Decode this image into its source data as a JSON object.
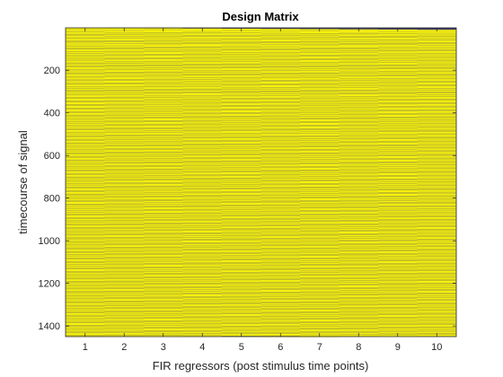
{
  "chart_data": {
    "type": "heatmap",
    "title": "Design Matrix",
    "xlabel": "FIR regressors (post stimulus time points)",
    "ylabel": "timecourse of signal",
    "x_categories": [
      1,
      2,
      3,
      4,
      5,
      6,
      7,
      8,
      9,
      10
    ],
    "x_ticks": [
      1,
      2,
      3,
      4,
      5,
      6,
      7,
      8,
      9,
      10
    ],
    "y_ticks": [
      200,
      400,
      600,
      800,
      1000,
      1200,
      1400
    ],
    "xlim": [
      0.5,
      10.5
    ],
    "ylim": [
      1,
      1450
    ],
    "y_direction": "reverse",
    "rows": 1450,
    "columns": 10,
    "values": "binary (0/1)",
    "colormap": {
      "0": "#3d3d6b",
      "1": "#f7f20d"
    },
    "column_onsets": [
      [
        1,
        6,
        11,
        16,
        22,
        27,
        33,
        39,
        44,
        50,
        55,
        61,
        67,
        73,
        78,
        83,
        89,
        95,
        101,
        106,
        112,
        117,
        123,
        129,
        134,
        140,
        146,
        151,
        157,
        162,
        168,
        174,
        180,
        186,
        191,
        197,
        202,
        208,
        214,
        220,
        225,
        231,
        236,
        242,
        248,
        253,
        259,
        265,
        270,
        276,
        281,
        287,
        293,
        299,
        305,
        310,
        316,
        321,
        327,
        333,
        338,
        344,
        350,
        355,
        361,
        367,
        372,
        378,
        384,
        389,
        395,
        401,
        406,
        412,
        418,
        424,
        429,
        435,
        441,
        446,
        452,
        458,
        463,
        469,
        475,
        481,
        486,
        492,
        497,
        503,
        509,
        515,
        520,
        526,
        532,
        537,
        543,
        549,
        555,
        560,
        566,
        572,
        577,
        583,
        589,
        595,
        600,
        606,
        612,
        617,
        623,
        629,
        635,
        640,
        646,
        652,
        657,
        663,
        669,
        675,
        680,
        686,
        692,
        697,
        703,
        709,
        715,
        720,
        726,
        732,
        737,
        743,
        749,
        755,
        760,
        766,
        772,
        777,
        783,
        789,
        795,
        800,
        806,
        812,
        818,
        823,
        829,
        835,
        841,
        846,
        852,
        858,
        863,
        869,
        875,
        881,
        886,
        892,
        898,
        904,
        909,
        915,
        921,
        927,
        932,
        938,
        944,
        950,
        955,
        961,
        967,
        973,
        978,
        984,
        990,
        996,
        1001,
        1007,
        1013,
        1019,
        1024,
        1030,
        1036,
        1042,
        1047,
        1053,
        1059,
        1065,
        1070,
        1076,
        1082,
        1088,
        1093,
        1099,
        1105,
        1111,
        1116,
        1122,
        1128,
        1134,
        1139,
        1145,
        1151,
        1157,
        1162,
        1168,
        1174,
        1180,
        1185,
        1191,
        1197,
        1203,
        1208,
        1214,
        1220,
        1226,
        1231,
        1237,
        1243,
        1249,
        1254,
        1260,
        1266,
        1272,
        1277,
        1283,
        1289,
        1295,
        1300,
        1306,
        1312,
        1318,
        1323,
        1329,
        1335,
        1341,
        1346,
        1352,
        1358,
        1364,
        1369,
        1375,
        1381,
        1387,
        1392,
        1398,
        1404,
        1410,
        1415,
        1421,
        1427,
        1433,
        1438,
        1444
      ]
    ]
  }
}
